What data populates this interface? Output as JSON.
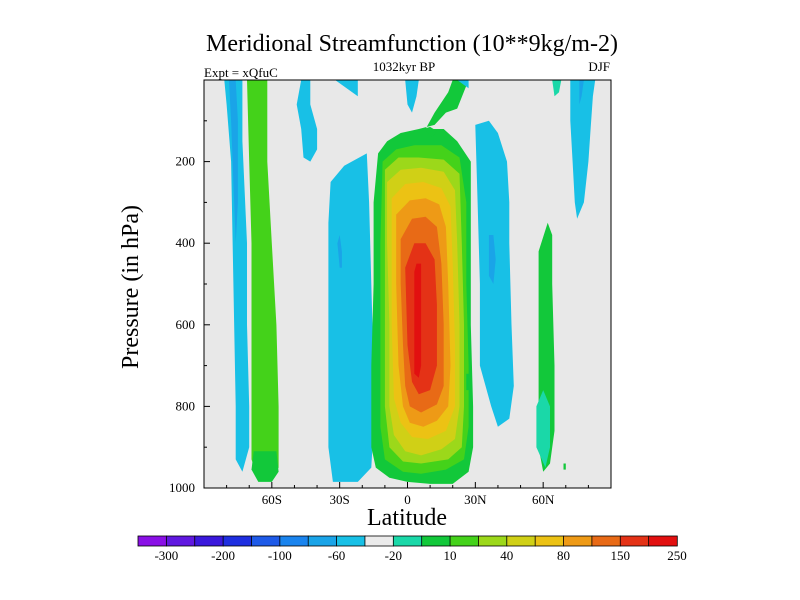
{
  "chart_data": {
    "type": "heatmap",
    "title": "Meridional Streamfunction (10**9kg/m-2)",
    "subtitle_left": "Expt = xQfuC",
    "subtitle_center": "1032kyr BP",
    "subtitle_right": "DJF",
    "xlabel": "Latitude",
    "ylabel": "Pressure (in hPa)",
    "xlim": [
      -90,
      90
    ],
    "ylim": [
      0,
      1000
    ],
    "y_inverted": true,
    "x_ticks": [
      {
        "value": -60,
        "label": "60S"
      },
      {
        "value": -30,
        "label": "30S"
      },
      {
        "value": 0,
        "label": "0"
      },
      {
        "value": 30,
        "label": "30N"
      },
      {
        "value": 60,
        "label": "60N"
      }
    ],
    "y_ticks": [
      {
        "value": 200,
        "label": "200"
      },
      {
        "value": 400,
        "label": "400"
      },
      {
        "value": 600,
        "label": "600"
      },
      {
        "value": 800,
        "label": "800"
      },
      {
        "value": 1000,
        "label": "1000"
      }
    ],
    "background_color": "#e8e8e8",
    "colorbar": {
      "colors": [
        "#8a10e6",
        "#6018e0",
        "#3a18dc",
        "#1e2ee0",
        "#1e5ae8",
        "#1a84ee",
        "#1aa4e8",
        "#18c0e6",
        "#ebebeb",
        "#1ad8a8",
        "#12c83a",
        "#44d21a",
        "#9cd81a",
        "#d0d016",
        "#ecc214",
        "#ee9a16",
        "#e86a16",
        "#e43216",
        "#e21010"
      ],
      "labels": [
        "-300",
        "-200",
        "-100",
        "-60",
        "-20",
        "10",
        "40",
        "80",
        "150",
        "250"
      ]
    },
    "regions": [
      {
        "level": 7,
        "points": [
          [
            -81,
            0
          ],
          [
            -73,
            0
          ],
          [
            -73,
            150
          ],
          [
            -71,
            400
          ],
          [
            -71,
            600
          ],
          [
            -70,
            800
          ],
          [
            -70,
            900
          ],
          [
            -73,
            960
          ],
          [
            -76,
            930
          ],
          [
            -76,
            800
          ],
          [
            -77,
            500
          ],
          [
            -78,
            200
          ],
          [
            -80,
            60
          ]
        ]
      },
      {
        "level": 6,
        "points": [
          [
            -79,
            0
          ],
          [
            -76,
            0
          ],
          [
            -75,
            100
          ],
          [
            -75,
            300
          ],
          [
            -76,
            400
          ],
          [
            -77,
            250
          ],
          [
            -78,
            100
          ]
        ]
      },
      {
        "level": 11,
        "points": [
          [
            -71,
            0
          ],
          [
            -62,
            0
          ],
          [
            -62,
            200
          ],
          [
            -60,
            400
          ],
          [
            -58,
            600
          ],
          [
            -57,
            800
          ],
          [
            -57,
            950
          ],
          [
            -61,
            980
          ],
          [
            -66,
            980
          ],
          [
            -69,
            930
          ],
          [
            -69,
            800
          ],
          [
            -69,
            600
          ],
          [
            -69,
            400
          ],
          [
            -70,
            200
          ]
        ]
      },
      {
        "level": 10,
        "points": [
          [
            -68,
            910
          ],
          [
            -58,
            910
          ],
          [
            -57,
            960
          ],
          [
            -60,
            985
          ],
          [
            -66,
            985
          ],
          [
            -69,
            955
          ]
        ]
      },
      {
        "level": 7,
        "points": [
          [
            -47,
            0
          ],
          [
            -43,
            0
          ],
          [
            -43,
            60
          ],
          [
            -40,
            120
          ],
          [
            -40,
            170
          ],
          [
            -43,
            200
          ],
          [
            -46,
            190
          ],
          [
            -47,
            120
          ],
          [
            -49,
            60
          ]
        ]
      },
      {
        "level": 7,
        "points": [
          [
            -32,
            0
          ],
          [
            -22,
            0
          ],
          [
            -22,
            40
          ]
        ]
      },
      {
        "level": 7,
        "points": [
          [
            -34,
            250
          ],
          [
            -28,
            210
          ],
          [
            -18,
            180
          ],
          [
            -17,
            300
          ],
          [
            -16,
            500
          ],
          [
            -15,
            700
          ],
          [
            -15,
            850
          ],
          [
            -16,
            950
          ],
          [
            -22,
            985
          ],
          [
            -33,
            985
          ],
          [
            -35,
            900
          ],
          [
            -35,
            700
          ],
          [
            -35,
            500
          ],
          [
            -35,
            350
          ]
        ]
      },
      {
        "level": 6,
        "points": [
          [
            -31,
            400
          ],
          [
            -30,
            380
          ],
          [
            -29,
            420
          ],
          [
            -29,
            460
          ],
          [
            -30,
            460
          ]
        ]
      },
      {
        "level": 10,
        "points": [
          [
            -13,
            180
          ],
          [
            -9,
            150
          ],
          [
            -3,
            130
          ],
          [
            5,
            120
          ],
          [
            12,
            110
          ],
          [
            17,
            80
          ],
          [
            22,
            70
          ],
          [
            27,
            0
          ],
          [
            20,
            0
          ],
          [
            18,
            30
          ],
          [
            12,
            80
          ],
          [
            8,
            120
          ],
          [
            16,
            120
          ],
          [
            22,
            150
          ],
          [
            28,
            200
          ],
          [
            28,
            400
          ],
          [
            28,
            600
          ],
          [
            29,
            800
          ],
          [
            29,
            900
          ],
          [
            27,
            960
          ],
          [
            20,
            990
          ],
          [
            10,
            990
          ],
          [
            0,
            985
          ],
          [
            -8,
            975
          ],
          [
            -14,
            950
          ],
          [
            -16,
            900
          ],
          [
            -16,
            700
          ],
          [
            -15,
            500
          ],
          [
            -15,
            300
          ]
        ]
      },
      {
        "level": 11,
        "points": [
          [
            -11,
            200
          ],
          [
            -5,
            170
          ],
          [
            3,
            160
          ],
          [
            15,
            160
          ],
          [
            23,
            190
          ],
          [
            26,
            300
          ],
          [
            26,
            500
          ],
          [
            27,
            700
          ],
          [
            27,
            850
          ],
          [
            25,
            930
          ],
          [
            17,
            955
          ],
          [
            6,
            965
          ],
          [
            -2,
            960
          ],
          [
            -10,
            930
          ],
          [
            -12,
            850
          ],
          [
            -12,
            600
          ],
          [
            -12,
            400
          ]
        ]
      },
      {
        "level": 12,
        "points": [
          [
            -10,
            220
          ],
          [
            -4,
            190
          ],
          [
            5,
            190
          ],
          [
            16,
            195
          ],
          [
            23,
            230
          ],
          [
            24,
            400
          ],
          [
            25,
            600
          ],
          [
            25,
            800
          ],
          [
            24,
            900
          ],
          [
            18,
            930
          ],
          [
            6,
            940
          ],
          [
            -2,
            935
          ],
          [
            -8,
            900
          ],
          [
            -10,
            800
          ],
          [
            -10,
            600
          ],
          [
            -10,
            400
          ]
        ]
      },
      {
        "level": 13,
        "points": [
          [
            -9,
            250
          ],
          [
            -3,
            220
          ],
          [
            6,
            215
          ],
          [
            16,
            225
          ],
          [
            21,
            270
          ],
          [
            22,
            400
          ],
          [
            23,
            600
          ],
          [
            23,
            800
          ],
          [
            21,
            880
          ],
          [
            15,
            905
          ],
          [
            6,
            920
          ],
          [
            -1,
            910
          ],
          [
            -6,
            870
          ],
          [
            -8,
            800
          ],
          [
            -8,
            600
          ],
          [
            -9,
            400
          ]
        ]
      },
      {
        "level": 14,
        "points": [
          [
            -7,
            290
          ],
          [
            -1,
            255
          ],
          [
            7,
            250
          ],
          [
            15,
            265
          ],
          [
            19,
            310
          ],
          [
            20,
            450
          ],
          [
            21,
            650
          ],
          [
            21,
            800
          ],
          [
            17,
            860
          ],
          [
            9,
            880
          ],
          [
            2,
            875
          ],
          [
            -3,
            840
          ],
          [
            -6,
            780
          ],
          [
            -7,
            600
          ],
          [
            -7,
            400
          ]
        ]
      },
      {
        "level": 15,
        "points": [
          [
            -5,
            330
          ],
          [
            1,
            295
          ],
          [
            8,
            290
          ],
          [
            14,
            305
          ],
          [
            17,
            360
          ],
          [
            18,
            500
          ],
          [
            19,
            700
          ],
          [
            18,
            800
          ],
          [
            13,
            835
          ],
          [
            7,
            850
          ],
          [
            1,
            840
          ],
          [
            -2,
            800
          ],
          [
            -4,
            700
          ],
          [
            -5,
            500
          ]
        ]
      },
      {
        "level": 16,
        "points": [
          [
            -3,
            390
          ],
          [
            2,
            340
          ],
          [
            8,
            335
          ],
          [
            13,
            360
          ],
          [
            15,
            450
          ],
          [
            16,
            600
          ],
          [
            16,
            750
          ],
          [
            13,
            795
          ],
          [
            6,
            815
          ],
          [
            1,
            800
          ],
          [
            -1,
            750
          ],
          [
            -2,
            650
          ],
          [
            -3,
            500
          ]
        ]
      },
      {
        "level": 17,
        "points": [
          [
            -1,
            460
          ],
          [
            3,
            400
          ],
          [
            8,
            400
          ],
          [
            12,
            440
          ],
          [
            13,
            550
          ],
          [
            13,
            700
          ],
          [
            10,
            760
          ],
          [
            5,
            770
          ],
          [
            2,
            740
          ],
          [
            0,
            650
          ]
        ]
      },
      {
        "level": 18,
        "points": [
          [
            3,
            470
          ],
          [
            4,
            450
          ],
          [
            6,
            450
          ],
          [
            6,
            550
          ],
          [
            6,
            700
          ],
          [
            5,
            730
          ],
          [
            3,
            720
          ],
          [
            3,
            600
          ]
        ]
      },
      {
        "level": 10,
        "points": [
          [
            7,
            120
          ],
          [
            10,
            115
          ],
          [
            13,
            125
          ],
          [
            11,
            140
          ]
        ]
      },
      {
        "level": 10,
        "points": [
          [
            26,
            720
          ],
          [
            28,
            720
          ],
          [
            28,
            760
          ],
          [
            26,
            760
          ]
        ]
      },
      {
        "level": 7,
        "points": [
          [
            -1,
            0
          ],
          [
            5,
            0
          ],
          [
            4,
            40
          ],
          [
            2,
            80
          ],
          [
            0,
            60
          ]
        ]
      },
      {
        "level": 7,
        "points": [
          [
            22,
            0
          ],
          [
            27,
            0
          ],
          [
            27,
            20
          ]
        ]
      },
      {
        "level": 7,
        "points": [
          [
            30,
            110
          ],
          [
            36,
            100
          ],
          [
            40,
            130
          ],
          [
            44,
            200
          ],
          [
            45,
            300
          ],
          [
            45,
            400
          ],
          [
            46,
            600
          ],
          [
            47,
            750
          ],
          [
            45,
            830
          ],
          [
            40,
            850
          ],
          [
            37,
            800
          ],
          [
            32,
            700
          ],
          [
            32,
            600
          ],
          [
            32,
            500
          ],
          [
            31,
            300
          ]
        ]
      },
      {
        "level": 6,
        "points": [
          [
            36,
            380
          ],
          [
            38,
            380
          ],
          [
            39,
            440
          ],
          [
            38,
            500
          ],
          [
            36,
            480
          ]
        ]
      },
      {
        "level": 10,
        "points": [
          [
            58,
            420
          ],
          [
            62,
            350
          ],
          [
            64,
            380
          ],
          [
            64,
            500
          ],
          [
            65,
            700
          ],
          [
            65,
            860
          ],
          [
            63,
            940
          ],
          [
            60,
            960
          ],
          [
            58,
            900
          ],
          [
            58,
            700
          ],
          [
            58,
            500
          ]
        ]
      },
      {
        "level": 9,
        "points": [
          [
            57,
            800
          ],
          [
            60,
            760
          ],
          [
            63,
            800
          ],
          [
            63,
            900
          ],
          [
            61,
            950
          ],
          [
            57,
            900
          ]
        ]
      },
      {
        "level": 10,
        "points": [
          [
            69,
            940
          ],
          [
            70,
            940
          ],
          [
            70,
            955
          ],
          [
            69,
            955
          ]
        ]
      },
      {
        "level": 7,
        "points": [
          [
            72,
            0
          ],
          [
            83,
            0
          ],
          [
            82,
            40
          ],
          [
            81,
            120
          ],
          [
            80,
            200
          ],
          [
            78,
            300
          ],
          [
            75,
            340
          ],
          [
            74,
            300
          ],
          [
            73,
            200
          ],
          [
            72,
            100
          ]
        ]
      },
      {
        "level": 6,
        "points": [
          [
            76,
            0
          ],
          [
            78,
            0
          ],
          [
            77,
            40
          ],
          [
            76,
            60
          ]
        ]
      },
      {
        "level": 9,
        "points": [
          [
            64,
            0
          ],
          [
            68,
            0
          ],
          [
            67,
            30
          ],
          [
            65,
            40
          ]
        ]
      }
    ]
  }
}
